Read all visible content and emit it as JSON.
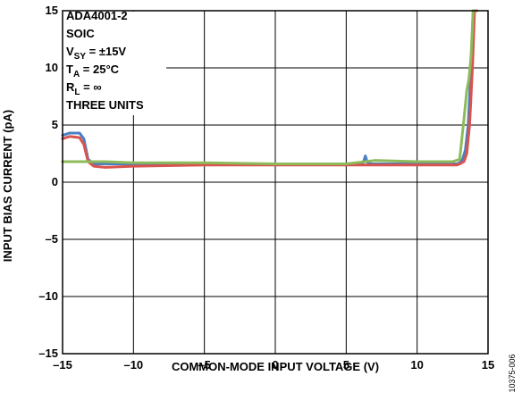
{
  "chart_data": {
    "type": "line",
    "xlabel": "COMMON-MODE INPUT VOLTAGE (V)",
    "ylabel": "INPUT BIAS CURRENT (pA)",
    "xlim": [
      -15,
      15
    ],
    "ylim": [
      -15,
      15
    ],
    "x_ticks": [
      -15,
      -10,
      -5,
      0,
      5,
      10,
      15
    ],
    "y_ticks": [
      -15,
      -10,
      -5,
      0,
      5,
      10,
      15
    ],
    "x_tick_labels": [
      "–15",
      "–10",
      "–5",
      "0",
      "5",
      "10",
      "15"
    ],
    "y_tick_labels": [
      "–15",
      "–10",
      "–5",
      "0",
      "5",
      "10",
      "15"
    ],
    "grid": true,
    "annotation": {
      "part": "ADA4001-2",
      "package": "SOIC",
      "vsy": {
        "main": "V",
        "sub": "SY",
        "rest": " = ±15V"
      },
      "ta": {
        "main": "T",
        "sub": "A",
        "rest": " = 25°C"
      },
      "rl": {
        "main": "R",
        "sub": "L",
        "rest": " = ∞"
      },
      "units": "THREE UNITS"
    },
    "figure_id": "10375-006",
    "colors": {
      "blue": "#4a7fc1",
      "red": "#d9534f",
      "green": "#8dbb5a",
      "grid": "#000000"
    },
    "series": [
      {
        "color": "blue",
        "x": [
          -15,
          -14.5,
          -13.8,
          -13.5,
          -13.2,
          -12.8,
          -12,
          -10,
          -5,
          0,
          5,
          6.0,
          6.2,
          6.35,
          6.5,
          6.8,
          10,
          12.8,
          13.0,
          13.2,
          13.4,
          13.6,
          13.8,
          13.95,
          14.1
        ],
        "y": [
          4.1,
          4.3,
          4.3,
          3.8,
          2.0,
          1.6,
          1.6,
          1.6,
          1.6,
          1.6,
          1.6,
          1.6,
          1.7,
          2.3,
          1.7,
          1.6,
          1.6,
          1.6,
          1.7,
          2.0,
          2.8,
          5.0,
          10.0,
          15.0,
          15.0
        ]
      },
      {
        "color": "red",
        "x": [
          -15,
          -14.5,
          -13.8,
          -13.5,
          -13.2,
          -12.8,
          -12,
          -10,
          -5,
          0,
          5,
          10,
          12.8,
          13.0,
          13.3,
          13.5,
          13.7,
          13.9,
          14.05,
          14.2
        ],
        "y": [
          3.8,
          4.0,
          3.9,
          3.3,
          1.8,
          1.4,
          1.3,
          1.4,
          1.5,
          1.5,
          1.5,
          1.5,
          1.5,
          1.6,
          1.8,
          2.5,
          5.0,
          10.0,
          15.0,
          15.0
        ]
      },
      {
        "color": "green",
        "x": [
          -15,
          -14,
          -13,
          -12,
          -10,
          -5,
          0,
          5,
          7,
          10,
          12.5,
          13.0,
          13.3,
          13.5,
          13.65,
          13.8,
          13.95,
          14.1
        ],
        "y": [
          1.8,
          1.8,
          1.8,
          1.8,
          1.7,
          1.7,
          1.6,
          1.6,
          1.9,
          1.8,
          1.8,
          2.0,
          5.5,
          8.0,
          9.0,
          11.0,
          15.0,
          15.0
        ]
      }
    ]
  }
}
